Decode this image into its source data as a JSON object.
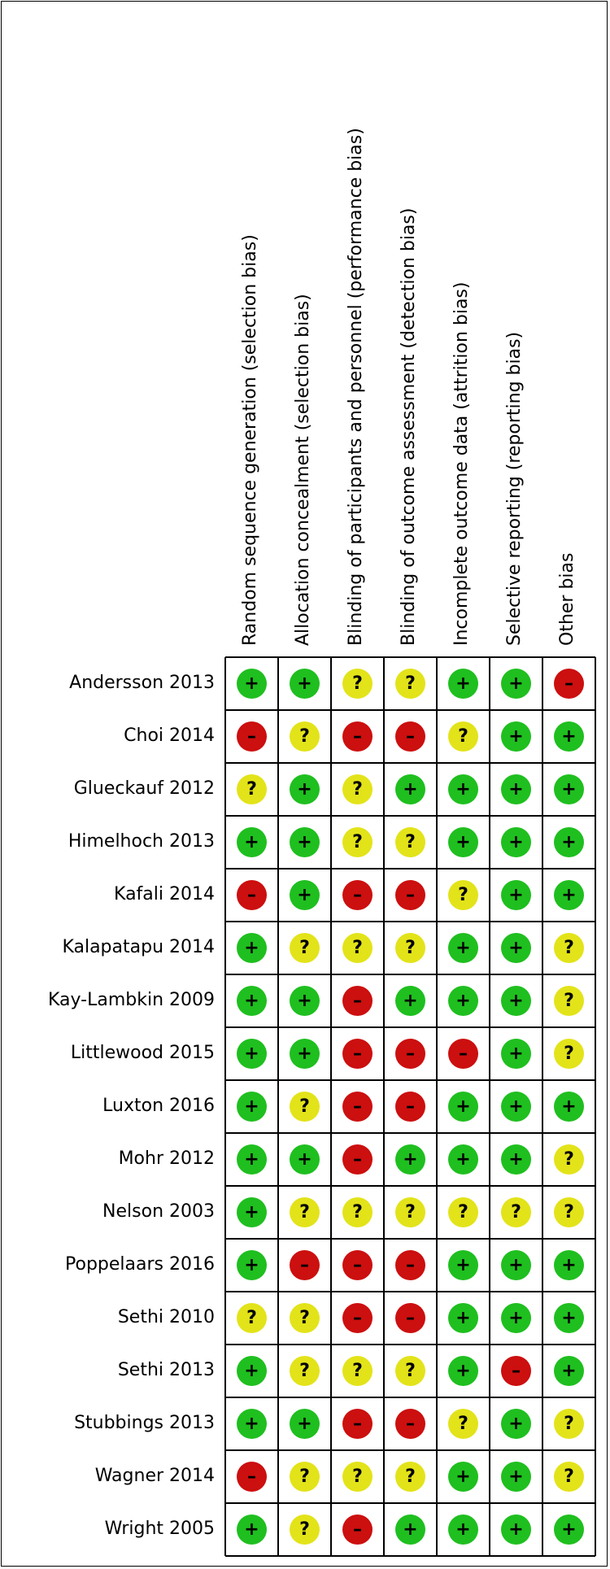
{
  "chart_data": {
    "type": "table",
    "columns": [
      "Random sequence generation (selection bias)",
      "Allocation concealment (selection bias)",
      "Blinding of participants and personnel (performance bias)",
      "Blinding of outcome assessment (detection bias)",
      "Incomplete outcome data (attrition bias)",
      "Selective reporting (reporting bias)",
      "Other bias"
    ],
    "rows": [
      {
        "study": "Andersson 2013",
        "ratings": [
          "+",
          "+",
          "?",
          "?",
          "+",
          "+",
          "-"
        ]
      },
      {
        "study": "Choi 2014",
        "ratings": [
          "-",
          "?",
          "-",
          "-",
          "?",
          "+",
          "+"
        ]
      },
      {
        "study": "Glueckauf 2012",
        "ratings": [
          "?",
          "+",
          "?",
          "+",
          "+",
          "+",
          "+"
        ]
      },
      {
        "study": "Himelhoch 2013",
        "ratings": [
          "+",
          "+",
          "?",
          "?",
          "+",
          "+",
          "+"
        ]
      },
      {
        "study": "Kafali 2014",
        "ratings": [
          "-",
          "+",
          "-",
          "-",
          "?",
          "+",
          "+"
        ]
      },
      {
        "study": "Kalapatapu 2014",
        "ratings": [
          "+",
          "?",
          "?",
          "?",
          "+",
          "+",
          "?"
        ]
      },
      {
        "study": "Kay-Lambkin 2009",
        "ratings": [
          "+",
          "+",
          "-",
          "+",
          "+",
          "+",
          "?"
        ]
      },
      {
        "study": "Littlewood 2015",
        "ratings": [
          "+",
          "+",
          "-",
          "-",
          "-",
          "+",
          "?"
        ]
      },
      {
        "study": "Luxton 2016",
        "ratings": [
          "+",
          "?",
          "-",
          "-",
          "+",
          "+",
          "+"
        ]
      },
      {
        "study": "Mohr 2012",
        "ratings": [
          "+",
          "+",
          "-",
          "+",
          "+",
          "+",
          "?"
        ]
      },
      {
        "study": "Nelson 2003",
        "ratings": [
          "+",
          "?",
          "?",
          "?",
          "?",
          "?",
          "?"
        ]
      },
      {
        "study": "Poppelaars 2016",
        "ratings": [
          "+",
          "-",
          "-",
          "-",
          "+",
          "+",
          "+"
        ]
      },
      {
        "study": "Sethi 2010",
        "ratings": [
          "?",
          "?",
          "-",
          "-",
          "+",
          "+",
          "+"
        ]
      },
      {
        "study": "Sethi 2013",
        "ratings": [
          "+",
          "?",
          "?",
          "?",
          "+",
          "-",
          "+"
        ]
      },
      {
        "study": "Stubbings 2013",
        "ratings": [
          "+",
          "+",
          "-",
          "-",
          "?",
          "+",
          "?"
        ]
      },
      {
        "study": "Wagner 2014",
        "ratings": [
          "-",
          "?",
          "?",
          "?",
          "+",
          "+",
          "?"
        ]
      },
      {
        "study": "Wright 2005",
        "ratings": [
          "+",
          "?",
          "-",
          "+",
          "+",
          "+",
          "+"
        ]
      }
    ],
    "symbols": {
      "+": "+",
      "-": "–",
      "?": "?"
    }
  },
  "colors": {
    "+": "#1fbf1f",
    "-": "#cc0f0f",
    "?": "#e3e31a"
  }
}
